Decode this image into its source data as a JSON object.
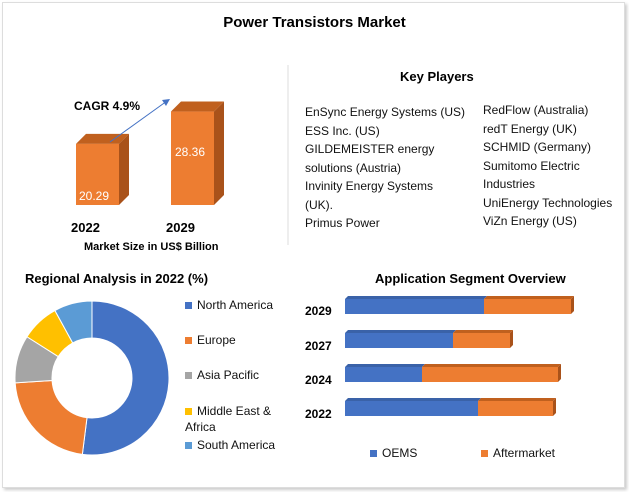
{
  "title": "Power Transistors Market",
  "colors": {
    "orange": "#ED7D31",
    "blue": "#4472C4",
    "gray": "#A5A5A5",
    "yellow": "#FFC000",
    "lightblue": "#5B9BD5"
  },
  "chart_data": [
    {
      "type": "bar",
      "title": "",
      "xlabel": "Market Size in US$ Billion",
      "categories": [
        "2022",
        "2029"
      ],
      "values": [
        20.29,
        28.36
      ],
      "data_labels": [
        "20.29",
        "28.36"
      ],
      "annotation": "CAGR 4.9%"
    },
    {
      "type": "pie",
      "title": "Regional Analysis in 2022 (%)",
      "labels": [
        "North America",
        "Europe",
        "Asia Pacific",
        "Middle East & Africa",
        "South America"
      ],
      "values": [
        52,
        22,
        10,
        8,
        8
      ],
      "legend": "right"
    },
    {
      "type": "bar",
      "orientation": "horizontal",
      "stacked": true,
      "title": "Application Segment Overview",
      "categories": [
        "2029",
        "2027",
        "2024",
        "2022"
      ],
      "series": [
        {
          "name": "OEMS",
          "values": [
            139,
            108,
            77,
            133
          ]
        },
        {
          "name": "Aftermarket",
          "values": [
            87,
            57,
            136,
            75
          ]
        }
      ],
      "legend": "bottom"
    }
  ],
  "key_players": {
    "title": "Key Players",
    "left": [
      "EnSync Energy Systems (US)",
      "ESS Inc. (US)",
      "GILDEMEISTER energy",
      "solutions (Austria)",
      "Invinity Energy Systems",
      "(UK).",
      "Primus Power"
    ],
    "right": [
      "RedFlow (Australia)",
      "redT Energy (UK)",
      "SCHMID (Germany)",
      "Sumitomo Electric",
      "Industries",
      "UniEnergy Technologies",
      "ViZn Energy (US)"
    ]
  },
  "pie_legend": [
    "North America",
    "Europe",
    "Asia Pacific",
    "Middle East &",
    "Africa",
    "South America"
  ]
}
